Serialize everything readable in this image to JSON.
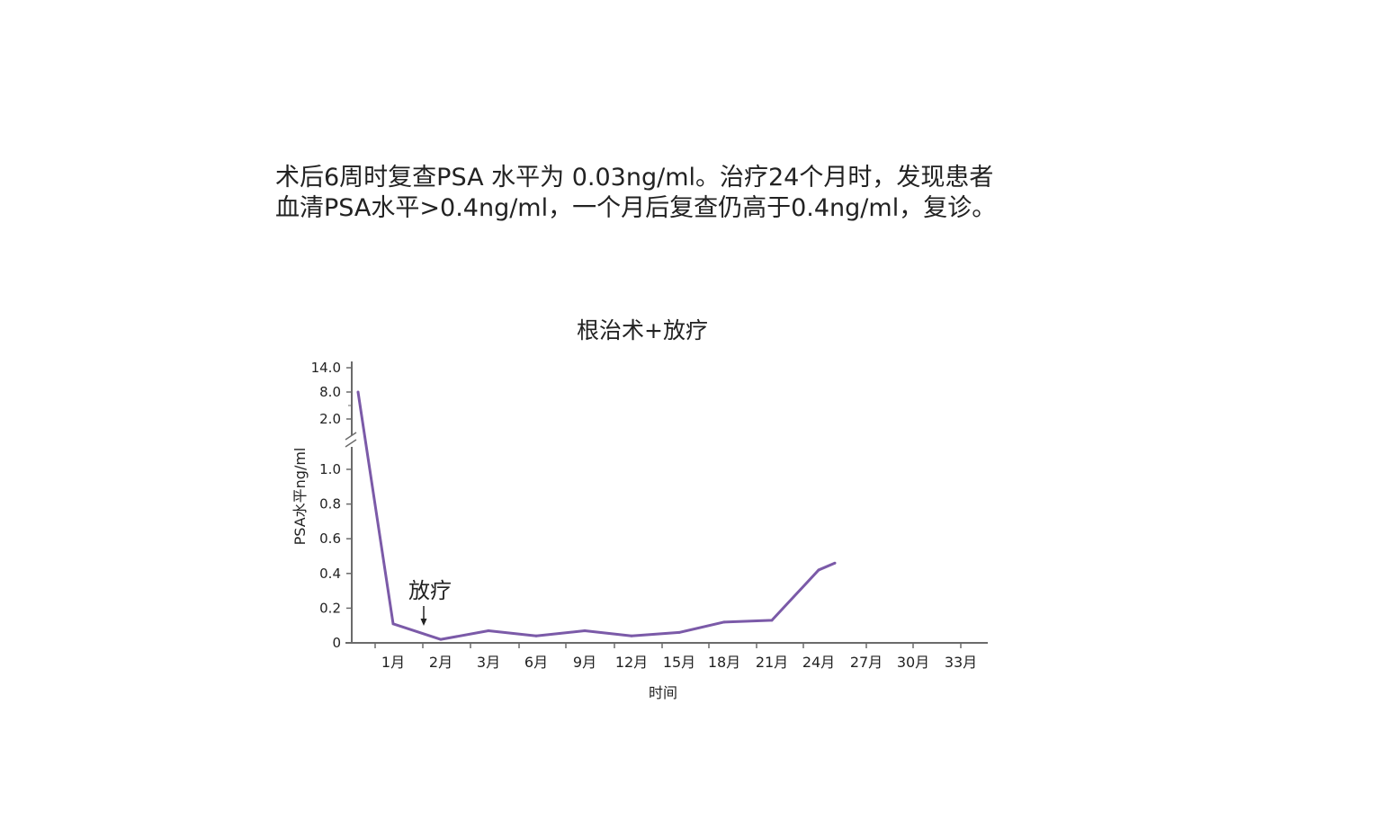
{
  "intro": {
    "line1": "术后6周时复查PSA 水平为 0.03ng/ml。治疗24个月时，发现患者",
    "line2": "血清PSA水平>0.4ng/ml，一个月后复查仍高于0.4ng/ml，复诊。"
  },
  "chart_data": {
    "type": "line",
    "title": "根治术+放疗",
    "xlabel": "时间",
    "ylabel": "PSA水平ng/ml",
    "x_tick_labels": [
      "1月",
      "2月",
      "3月",
      "6月",
      "9月",
      "12月",
      "15月",
      "18月",
      "21月",
      "24月",
      "27月",
      "30月",
      "33月"
    ],
    "y_tick_labels": [
      "0",
      "0.2",
      "0.4",
      "0.6",
      "0.8",
      "1.0",
      "2.0",
      "8.0",
      "14.0"
    ],
    "y_axis_break": true,
    "grid": false,
    "color": "#7b5aa8",
    "series": [
      {
        "x": [
          "0",
          "1月",
          "2月",
          "3月",
          "6月",
          "9月",
          "12月",
          "15月",
          "18月",
          "21月",
          "24月",
          "25月"
        ],
        "values": [
          8.0,
          0.11,
          0.02,
          0.07,
          0.04,
          0.07,
          0.04,
          0.06,
          0.12,
          0.13,
          0.42,
          0.46
        ]
      }
    ],
    "annotation": {
      "text": "放疗",
      "at": "1.5月"
    }
  }
}
